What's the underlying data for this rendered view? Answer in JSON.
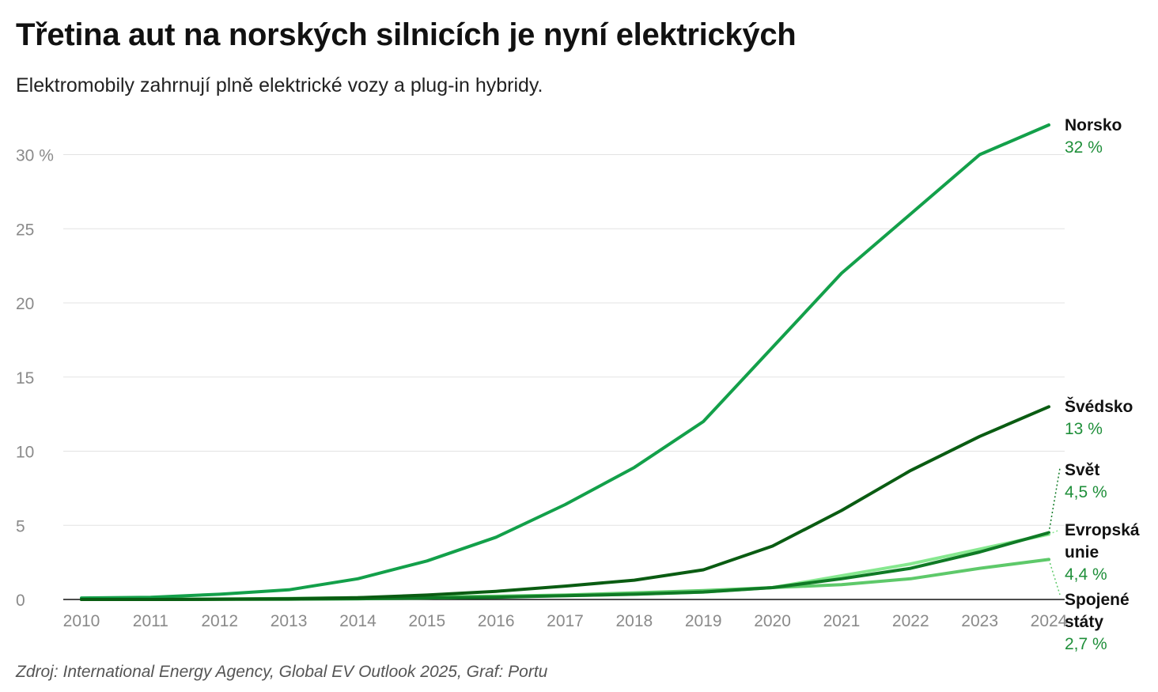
{
  "header": {
    "title": "Třetina aut na norských silnicích je nyní elektrických",
    "subtitle": "Elektromobily zahrnují plně elektrické vozy a plug-in hybridy."
  },
  "footer": {
    "source": "Zdroj: International Energy Agency, Global EV Outlook 2025, Graf: Portu"
  },
  "chart_data": {
    "type": "line",
    "title": "Třetina aut na norských silnicích je nyní elektrických",
    "subtitle": "Elektromobily zahrnují plně elektrické vozy a plug-in hybridy.",
    "xlabel": "",
    "ylabel": "",
    "x": [
      2010,
      2011,
      2012,
      2013,
      2014,
      2015,
      2016,
      2017,
      2018,
      2019,
      2020,
      2021,
      2022,
      2023,
      2024
    ],
    "ylim": [
      0,
      32
    ],
    "y_ticks": [
      0,
      5,
      10,
      15,
      20,
      25,
      30
    ],
    "y_tick_labels": [
      "0",
      "5",
      "10",
      "15",
      "20",
      "25",
      "30 %"
    ],
    "grid": "horizontal",
    "legend": "direct labels at right end of lines",
    "series": [
      {
        "name": "Norsko",
        "end_label": "32 %",
        "color": "#13a04a",
        "values": [
          0.1,
          0.15,
          0.35,
          0.65,
          1.4,
          2.6,
          4.2,
          6.4,
          8.9,
          12.0,
          17.0,
          22.0,
          26.0,
          30.0,
          32.0
        ]
      },
      {
        "name": "Švédsko",
        "end_label": "13 %",
        "color": "#0a5c12",
        "values": [
          0.0,
          0.0,
          0.02,
          0.05,
          0.12,
          0.3,
          0.55,
          0.9,
          1.3,
          2.0,
          3.6,
          6.0,
          8.7,
          11.0,
          13.0
        ]
      },
      {
        "name": "Svět",
        "end_label": "4,5 %",
        "color": "#0f7a25",
        "values": [
          0.0,
          0.0,
          0.01,
          0.02,
          0.05,
          0.1,
          0.15,
          0.25,
          0.35,
          0.5,
          0.8,
          1.4,
          2.1,
          3.2,
          4.5
        ]
      },
      {
        "name": "Evropská unie",
        "end_label": "4,4 %",
        "color": "#86e88f",
        "values": [
          0.0,
          0.0,
          0.01,
          0.02,
          0.05,
          0.1,
          0.17,
          0.25,
          0.35,
          0.5,
          0.8,
          1.6,
          2.4,
          3.4,
          4.4
        ]
      },
      {
        "name": "Spojené státy",
        "end_label": "2,7 %",
        "color": "#5ec96a",
        "values": [
          0.0,
          0.01,
          0.03,
          0.07,
          0.12,
          0.17,
          0.22,
          0.3,
          0.45,
          0.6,
          0.8,
          1.0,
          1.4,
          2.1,
          2.7
        ]
      }
    ]
  }
}
